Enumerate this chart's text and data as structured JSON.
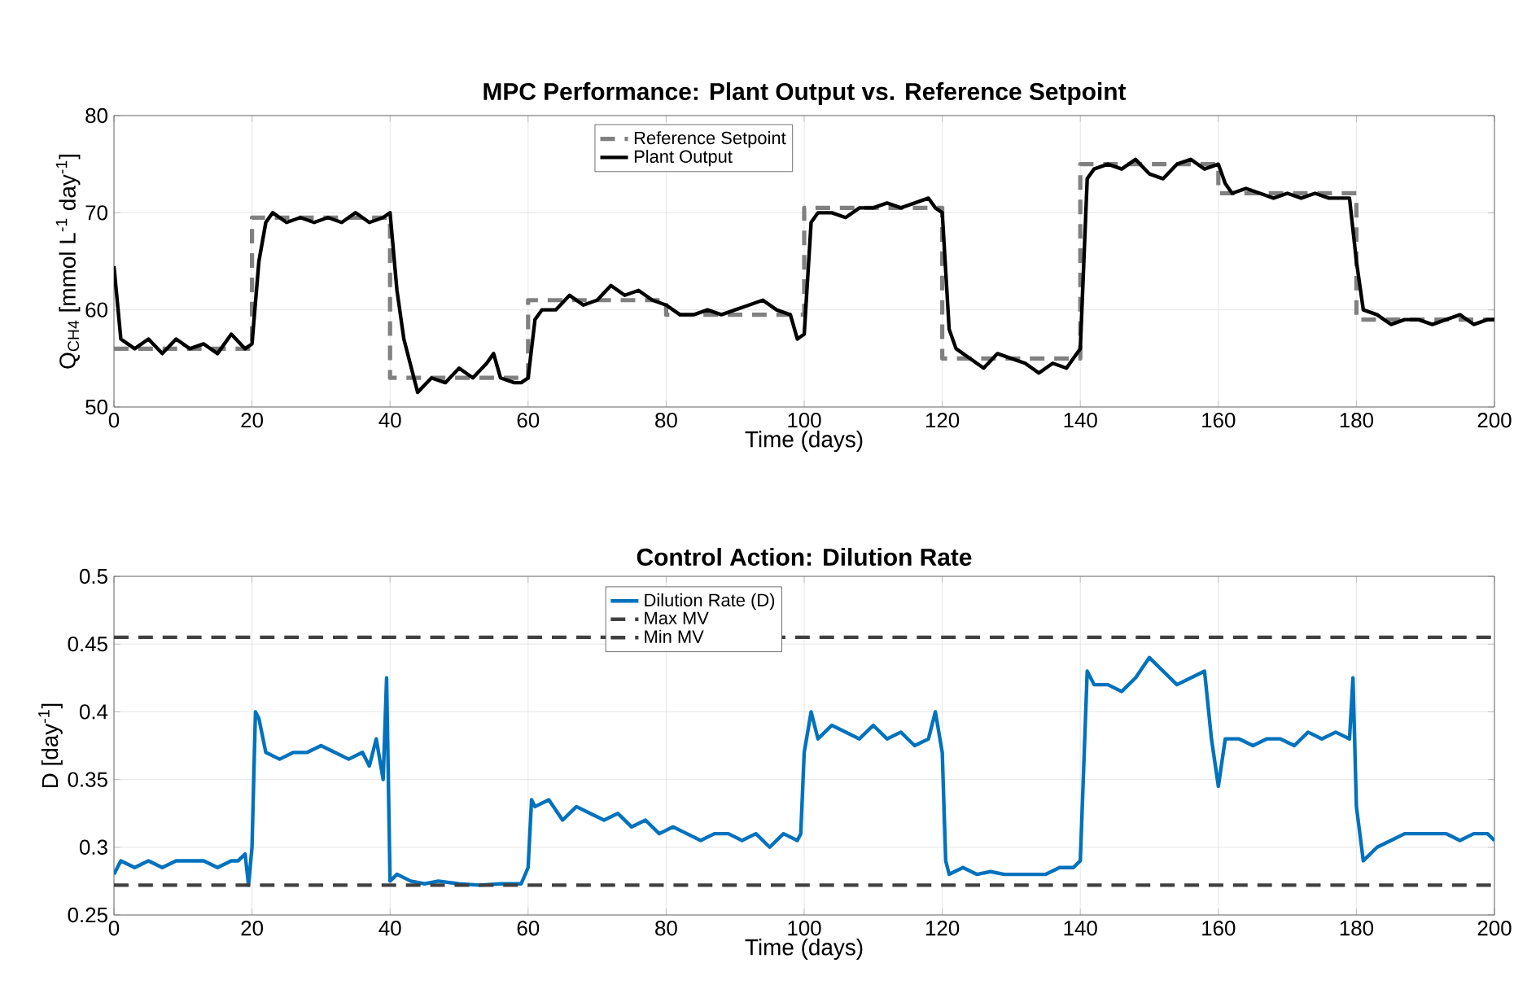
{
  "chart_data": [
    {
      "type": "line",
      "title": "MPC Performance: Plant Output vs. Reference Setpoint",
      "xlabel": "Time (days)",
      "ylabel": "Q$_{CH4}$ [mmol L$^{-1}$ day$^{-1}$]",
      "xlim": [
        0,
        200
      ],
      "ylim": [
        50,
        80
      ],
      "xticks": [
        0,
        20,
        40,
        60,
        80,
        100,
        120,
        140,
        160,
        180,
        200
      ],
      "yticks": [
        50,
        60,
        70,
        80
      ],
      "grid": true,
      "legend": "top",
      "series": [
        {
          "name": "Reference Setpoint",
          "type": "step",
          "color": "#808080",
          "line_style": "dashed",
          "x": [
            0,
            20,
            40,
            60,
            80,
            100,
            120,
            140,
            160,
            180,
            200
          ],
          "values": [
            56,
            69.5,
            53,
            61,
            59.5,
            70.5,
            55,
            75,
            72,
            59,
            59
          ]
        },
        {
          "name": "Plant Output",
          "color": "#000000",
          "line_style": "solid",
          "x": [
            0,
            1,
            3,
            5,
            7,
            9,
            11,
            13,
            15,
            17,
            19,
            20,
            21,
            22,
            23,
            25,
            27,
            29,
            31,
            33,
            35,
            37,
            39,
            40,
            41,
            42,
            44,
            46,
            48,
            50,
            52,
            54,
            55,
            56,
            58,
            59,
            60,
            61,
            62,
            64,
            66,
            68,
            70,
            72,
            74,
            76,
            78,
            80,
            82,
            84,
            86,
            88,
            90,
            92,
            94,
            96,
            98,
            99,
            100,
            101,
            102,
            104,
            106,
            108,
            110,
            112,
            114,
            116,
            118,
            119,
            120,
            121,
            122,
            124,
            126,
            128,
            130,
            132,
            134,
            136,
            138,
            139,
            140,
            141,
            142,
            144,
            146,
            148,
            150,
            152,
            154,
            156,
            158,
            160,
            161,
            162,
            164,
            166,
            168,
            170,
            172,
            174,
            176,
            178,
            179,
            180,
            181,
            183,
            185,
            187,
            189,
            191,
            193,
            195,
            197,
            199,
            200
          ],
          "values": [
            64.5,
            57,
            56,
            57,
            55.5,
            57,
            56,
            56.5,
            55.5,
            57.5,
            56,
            56.5,
            65,
            69,
            70,
            69,
            69.5,
            69,
            69.5,
            69,
            70,
            69,
            69.5,
            70,
            62,
            57,
            51.5,
            53,
            52.5,
            54,
            53,
            54.5,
            55.5,
            53,
            52.5,
            52.5,
            53,
            59,
            60,
            60,
            61.5,
            60.5,
            61,
            62.5,
            61.5,
            62,
            61,
            60.5,
            59.5,
            59.5,
            60,
            59.5,
            60,
            60.5,
            61,
            60,
            59.5,
            57,
            57.5,
            69,
            70,
            70,
            69.5,
            70.5,
            70.5,
            71,
            70.5,
            71,
            71.5,
            70.5,
            70,
            58,
            56,
            55,
            54,
            55.5,
            55,
            54.5,
            53.5,
            54.5,
            54,
            55,
            56,
            73.5,
            74.5,
            75,
            74.5,
            75.5,
            74,
            73.5,
            75,
            75.5,
            74.5,
            75,
            73,
            72,
            72.5,
            72,
            71.5,
            72,
            71.5,
            72,
            71.5,
            71.5,
            71.5,
            65,
            60,
            59.5,
            58.5,
            59,
            59,
            58.5,
            59,
            59.5,
            58.5,
            59,
            59
          ]
        }
      ]
    },
    {
      "type": "line",
      "title": "Control Action: Dilution Rate",
      "xlabel": "Time (days)",
      "ylabel": "D [day$^{-1}$]",
      "xlim": [
        0,
        200
      ],
      "ylim": [
        0.25,
        0.5
      ],
      "xticks": [
        0,
        20,
        40,
        60,
        80,
        100,
        120,
        140,
        160,
        180,
        200
      ],
      "yticks": [
        0.25,
        0.3,
        0.35,
        0.4,
        0.45,
        0.5
      ],
      "grid": true,
      "legend": "top",
      "series": [
        {
          "name": "Dilution Rate (D)",
          "color": "#0072bd",
          "line_style": "solid",
          "x": [
            0,
            1,
            3,
            5,
            7,
            9,
            11,
            13,
            15,
            17,
            18,
            19,
            19.5,
            20,
            20.5,
            21,
            22,
            24,
            26,
            28,
            30,
            32,
            34,
            36,
            37,
            38,
            39,
            39.5,
            40,
            41,
            43,
            45,
            47,
            50,
            53,
            56,
            59,
            60,
            60.5,
            61,
            63,
            65,
            67,
            69,
            71,
            73,
            75,
            77,
            79,
            81,
            83,
            85,
            87,
            89,
            91,
            93,
            95,
            97,
            99,
            99.5,
            100,
            101,
            102,
            104,
            106,
            108,
            110,
            112,
            114,
            116,
            118,
            119,
            120,
            120.5,
            121,
            123,
            125,
            127,
            129,
            131,
            133,
            135,
            137,
            139,
            140,
            141,
            142,
            144,
            146,
            148,
            150,
            152,
            154,
            156,
            158,
            159,
            160,
            161,
            163,
            165,
            167,
            169,
            171,
            173,
            175,
            177,
            179,
            179.5,
            180,
            181,
            183,
            185,
            187,
            189,
            191,
            193,
            195,
            197,
            199,
            200
          ],
          "values": [
            0.28,
            0.29,
            0.285,
            0.29,
            0.285,
            0.29,
            0.29,
            0.29,
            0.285,
            0.29,
            0.29,
            0.295,
            0.272,
            0.3,
            0.4,
            0.395,
            0.37,
            0.365,
            0.37,
            0.37,
            0.375,
            0.37,
            0.365,
            0.37,
            0.36,
            0.38,
            0.35,
            0.425,
            0.275,
            0.28,
            0.275,
            0.273,
            0.275,
            0.273,
            0.272,
            0.273,
            0.273,
            0.285,
            0.335,
            0.33,
            0.335,
            0.32,
            0.33,
            0.325,
            0.32,
            0.325,
            0.315,
            0.32,
            0.31,
            0.315,
            0.31,
            0.305,
            0.31,
            0.31,
            0.305,
            0.31,
            0.3,
            0.31,
            0.305,
            0.31,
            0.37,
            0.4,
            0.38,
            0.39,
            0.385,
            0.38,
            0.39,
            0.38,
            0.385,
            0.375,
            0.38,
            0.4,
            0.37,
            0.29,
            0.28,
            0.285,
            0.28,
            0.282,
            0.28,
            0.28,
            0.28,
            0.28,
            0.285,
            0.285,
            0.29,
            0.43,
            0.42,
            0.42,
            0.415,
            0.425,
            0.44,
            0.43,
            0.42,
            0.425,
            0.43,
            0.38,
            0.345,
            0.38,
            0.38,
            0.375,
            0.38,
            0.38,
            0.375,
            0.385,
            0.38,
            0.385,
            0.38,
            0.425,
            0.33,
            0.29,
            0.3,
            0.305,
            0.31,
            0.31,
            0.31,
            0.31,
            0.305,
            0.31,
            0.31,
            0.305
          ]
        }
      ],
      "ref_lines": [
        {
          "axis": "y",
          "value": 0.455,
          "label": "Max MV",
          "color": "#404040",
          "line_style": "dashed"
        },
        {
          "axis": "y",
          "value": 0.272,
          "label": "Min MV",
          "color": "#404040",
          "line_style": "dashed"
        }
      ]
    }
  ]
}
